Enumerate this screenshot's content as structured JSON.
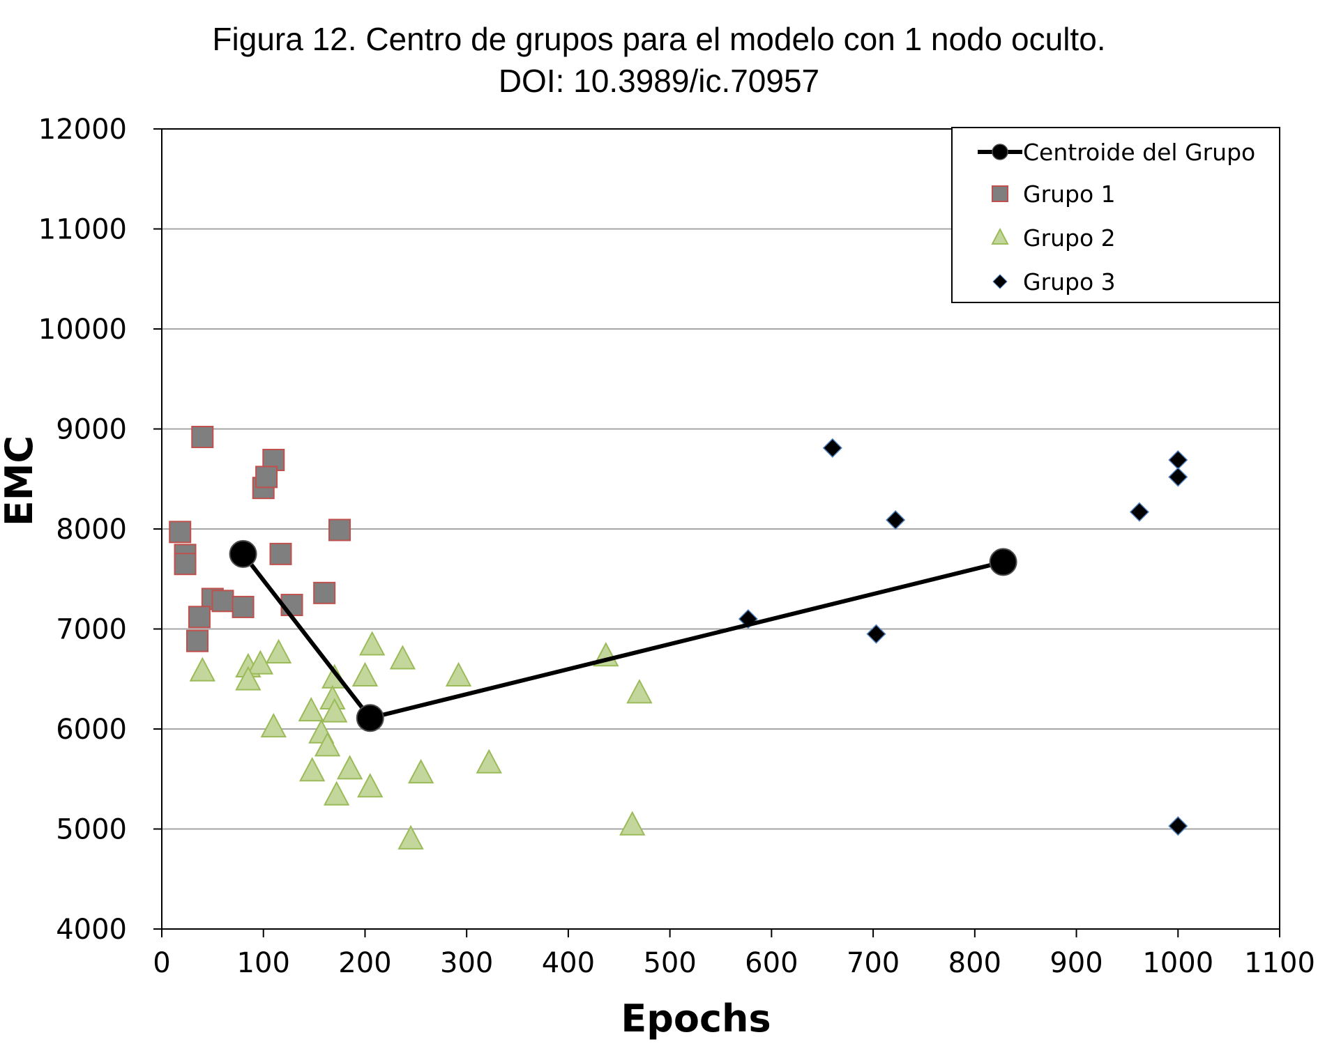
{
  "chart_data": {
    "type": "scatter",
    "title_line1": "Figura 12. Centro de grupos para el modelo con 1 nodo oculto.",
    "title_line2": "DOI: 10.3989/ic.70957",
    "xlabel": "Epochs",
    "ylabel": "EMC",
    "xlim": [
      0,
      1100
    ],
    "ylim": [
      4000,
      12000
    ],
    "xticks": [
      0,
      100,
      200,
      300,
      400,
      500,
      600,
      700,
      800,
      900,
      1000,
      1100
    ],
    "yticks": [
      4000,
      5000,
      6000,
      7000,
      8000,
      9000,
      10000,
      11000,
      12000
    ],
    "grid": "horizontal",
    "legend_position": "top-right",
    "series": [
      {
        "name": "Centroide del Grupo",
        "kind": "line-marker",
        "color": "#000000",
        "points": [
          [
            80,
            7750
          ],
          [
            205,
            6110
          ],
          [
            828,
            7670
          ]
        ]
      },
      {
        "name": "Grupo 1",
        "kind": "square",
        "color": "#7f7f7f",
        "stroke": "#c0504d",
        "points": [
          [
            40,
            8920
          ],
          [
            110,
            8690
          ],
          [
            100,
            8410
          ],
          [
            103,
            8520
          ],
          [
            18,
            7970
          ],
          [
            175,
            7990
          ],
          [
            23,
            7740
          ],
          [
            23,
            7650
          ],
          [
            117,
            7750
          ],
          [
            160,
            7360
          ],
          [
            50,
            7300
          ],
          [
            60,
            7280
          ],
          [
            80,
            7220
          ],
          [
            128,
            7240
          ],
          [
            37,
            7120
          ],
          [
            35,
            6880
          ]
        ]
      },
      {
        "name": "Grupo 2",
        "kind": "triangle",
        "color": "#c3d69b",
        "stroke": "#9bbb59",
        "points": [
          [
            40,
            6580
          ],
          [
            85,
            6620
          ],
          [
            97,
            6650
          ],
          [
            115,
            6760
          ],
          [
            85,
            6490
          ],
          [
            170,
            6510
          ],
          [
            200,
            6530
          ],
          [
            207,
            6840
          ],
          [
            237,
            6700
          ],
          [
            292,
            6530
          ],
          [
            437,
            6730
          ],
          [
            470,
            6360
          ],
          [
            168,
            6300
          ],
          [
            170,
            6170
          ],
          [
            147,
            6180
          ],
          [
            110,
            6020
          ],
          [
            157,
            5960
          ],
          [
            163,
            5830
          ],
          [
            148,
            5580
          ],
          [
            185,
            5600
          ],
          [
            172,
            5340
          ],
          [
            205,
            5420
          ],
          [
            255,
            5560
          ],
          [
            322,
            5660
          ],
          [
            245,
            4900
          ],
          [
            463,
            5040
          ]
        ]
      },
      {
        "name": "Grupo 3",
        "kind": "diamond",
        "color": "#000000",
        "points": [
          [
            660,
            8810
          ],
          [
            722,
            8090
          ],
          [
            962,
            8170
          ],
          [
            1000,
            8690
          ],
          [
            1000,
            8520
          ],
          [
            577,
            7100
          ],
          [
            703,
            6950
          ],
          [
            1000,
            5030
          ]
        ]
      }
    ]
  }
}
